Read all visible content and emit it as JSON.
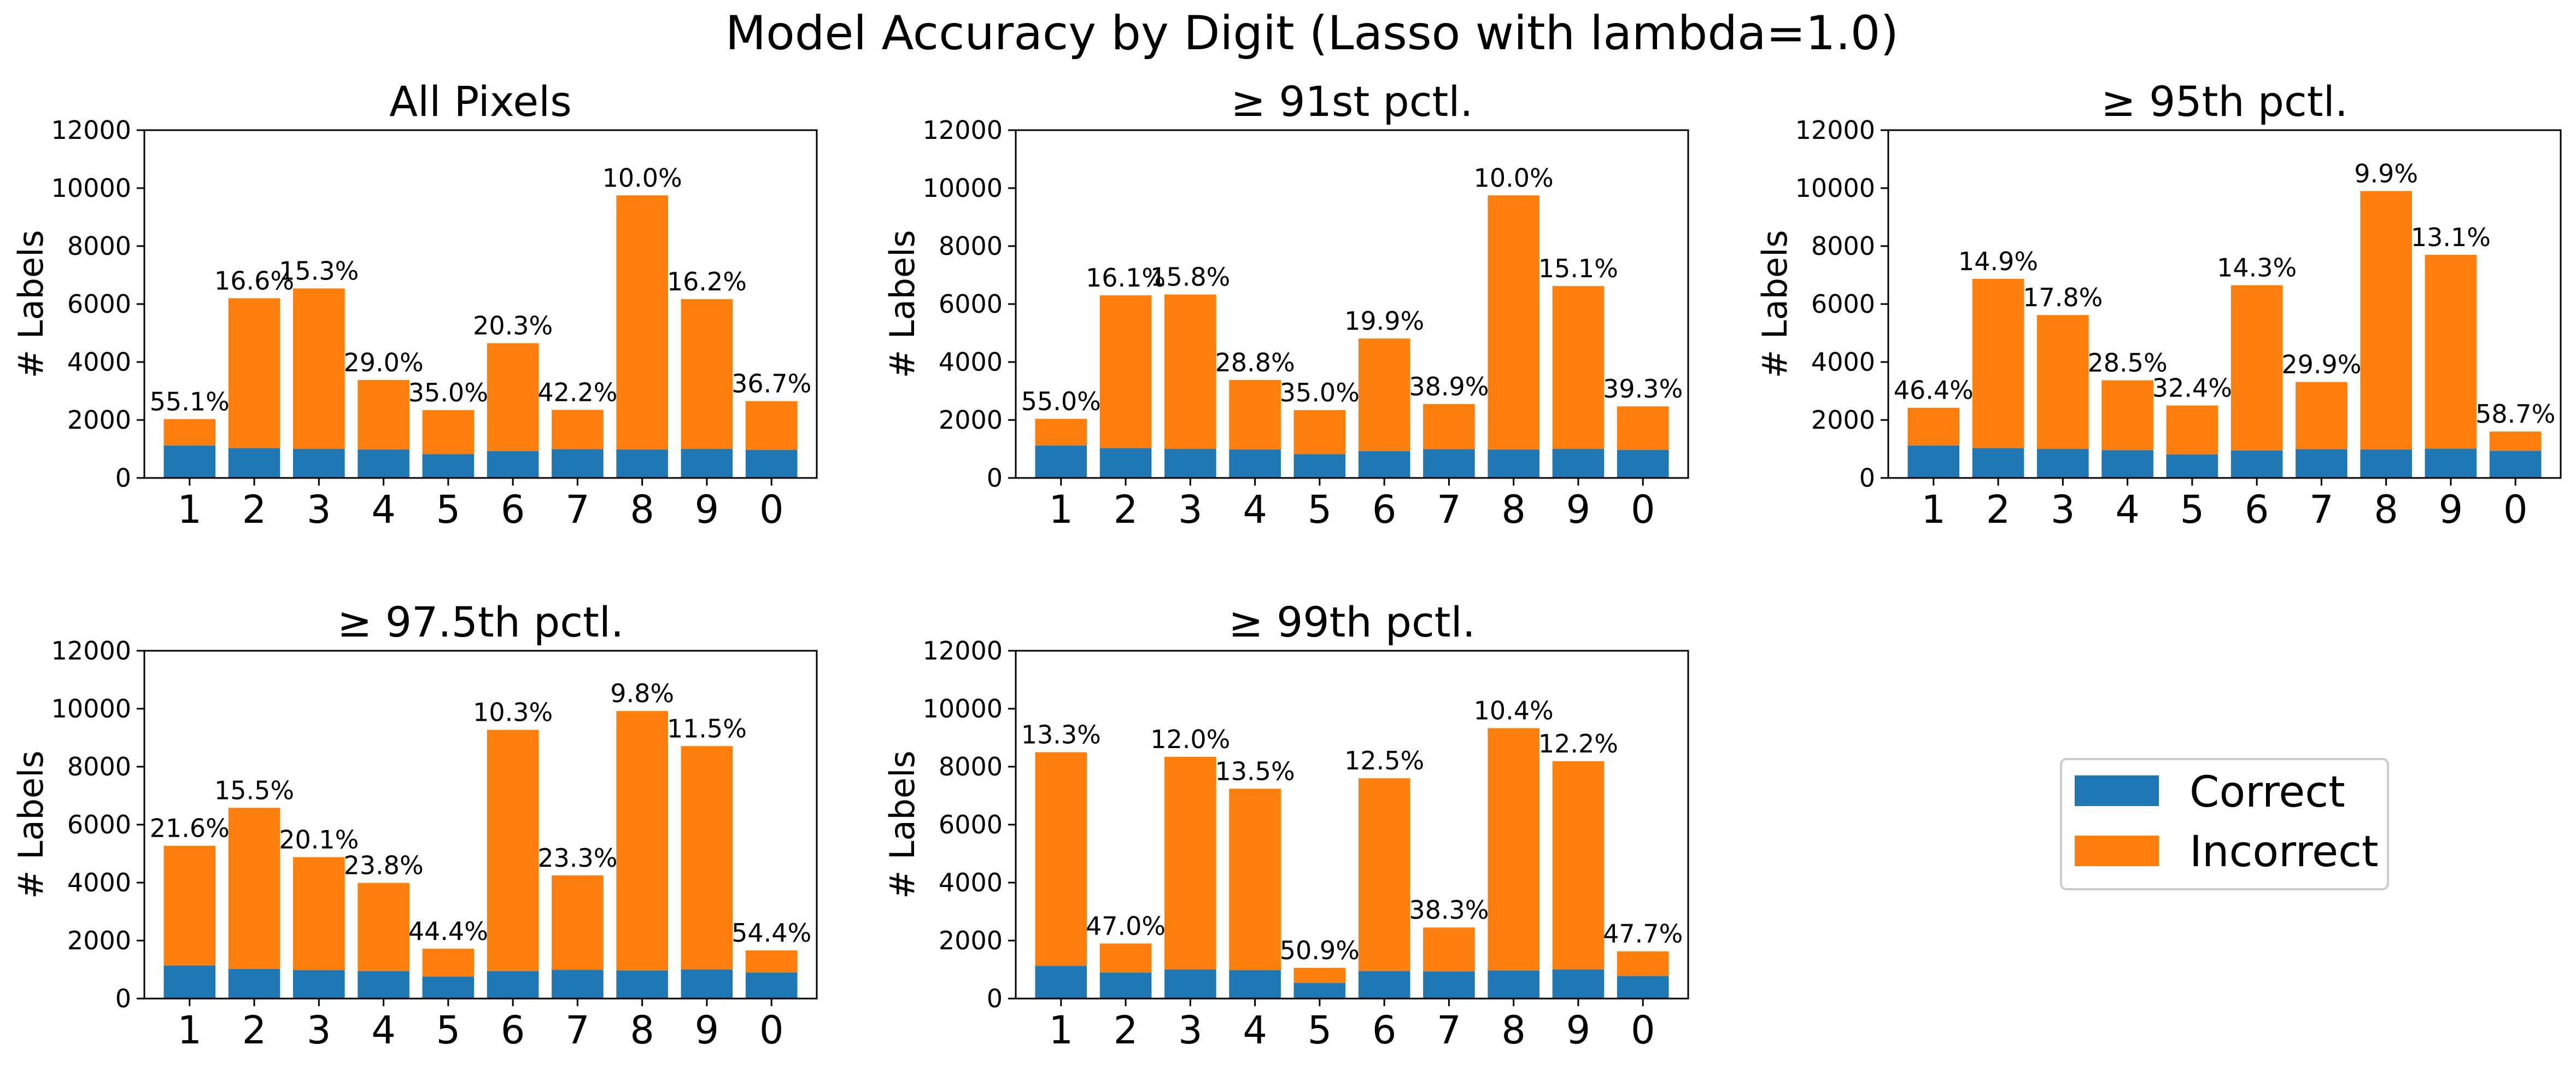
{
  "figure_title": "Model Accuracy by Digit (Lasso with lambda=1.0)",
  "legend": {
    "entries": [
      {
        "label": "Correct",
        "color": "#1f77b4"
      },
      {
        "label": "Incorrect",
        "color": "#ff7f0e"
      }
    ]
  },
  "colors": {
    "correct": "#1f77b4",
    "incorrect": "#ff7f0e"
  },
  "chart_data": [
    {
      "type": "bar",
      "stacked": true,
      "title": "All Pixels",
      "ylabel": "# Labels",
      "xlabel": "",
      "ylim": [
        0,
        12000
      ],
      "yticks": [
        "0",
        "2000",
        "4000",
        "6000",
        "8000",
        "10000",
        "12000"
      ],
      "categories": [
        "1",
        "2",
        "3",
        "4",
        "5",
        "6",
        "7",
        "8",
        "9",
        "0"
      ],
      "series": [
        {
          "name": "Correct",
          "values": [
            1120,
            1030,
            1000,
            980,
            820,
            930,
            990,
            980,
            1000,
            970
          ]
        },
        {
          "name": "Incorrect",
          "values": [
            910,
            5170,
            5540,
            2400,
            1520,
            3720,
            1360,
            8770,
            5170,
            1680
          ]
        }
      ],
      "labels": [
        "55.1%",
        "16.6%",
        "15.3%",
        "29.0%",
        "35.0%",
        "20.3%",
        "42.2%",
        "10.0%",
        "16.2%",
        "36.7%"
      ]
    },
    {
      "type": "bar",
      "stacked": true,
      "title": "≥ 91st pctl.",
      "ylabel": "# Labels",
      "xlabel": "",
      "ylim": [
        0,
        12000
      ],
      "yticks": [
        "0",
        "2000",
        "4000",
        "6000",
        "8000",
        "10000",
        "12000"
      ],
      "categories": [
        "1",
        "2",
        "3",
        "4",
        "5",
        "6",
        "7",
        "8",
        "9",
        "0"
      ],
      "series": [
        {
          "name": "Correct",
          "values": [
            1120,
            1030,
            1000,
            980,
            820,
            930,
            990,
            980,
            1000,
            970
          ]
        },
        {
          "name": "Incorrect",
          "values": [
            920,
            5270,
            5330,
            2400,
            1520,
            3880,
            1560,
            8770,
            5620,
            1500
          ]
        }
      ],
      "labels": [
        "55.0%",
        "16.1%",
        "15.8%",
        "28.8%",
        "35.0%",
        "19.9%",
        "38.9%",
        "10.0%",
        "15.1%",
        "39.3%"
      ]
    },
    {
      "type": "bar",
      "stacked": true,
      "title": "≥ 95th pctl.",
      "ylabel": "# Labels",
      "xlabel": "",
      "ylim": [
        0,
        12000
      ],
      "yticks": [
        "0",
        "2000",
        "4000",
        "6000",
        "8000",
        "10000",
        "12000"
      ],
      "categories": [
        "1",
        "2",
        "3",
        "4",
        "5",
        "6",
        "7",
        "8",
        "9",
        "0"
      ],
      "series": [
        {
          "name": "Correct",
          "values": [
            1120,
            1030,
            1000,
            960,
            810,
            950,
            990,
            980,
            1010,
            940
          ]
        },
        {
          "name": "Incorrect",
          "values": [
            1300,
            5840,
            4620,
            2410,
            1690,
            5700,
            2320,
            8920,
            6690,
            660
          ]
        }
      ],
      "labels": [
        "46.4%",
        "14.9%",
        "17.8%",
        "28.5%",
        "32.4%",
        "14.3%",
        "29.9%",
        "9.9%",
        "13.1%",
        "58.7%"
      ]
    },
    {
      "type": "bar",
      "stacked": true,
      "title": "≥ 97.5th pctl.",
      "ylabel": "# Labels",
      "xlabel": "",
      "ylim": [
        0,
        12000
      ],
      "yticks": [
        "0",
        "2000",
        "4000",
        "6000",
        "8000",
        "10000",
        "12000"
      ],
      "categories": [
        "1",
        "2",
        "3",
        "4",
        "5",
        "6",
        "7",
        "8",
        "9",
        "0"
      ],
      "series": [
        {
          "name": "Correct",
          "values": [
            1140,
            1020,
            980,
            950,
            760,
            950,
            990,
            970,
            1000,
            900
          ]
        },
        {
          "name": "Incorrect",
          "values": [
            4130,
            5560,
            3900,
            3040,
            960,
            8320,
            3260,
            8950,
            7710,
            760
          ]
        }
      ],
      "labels": [
        "21.6%",
        "15.5%",
        "20.1%",
        "23.8%",
        "44.4%",
        "10.3%",
        "23.3%",
        "9.8%",
        "11.5%",
        "54.4%"
      ]
    },
    {
      "type": "bar",
      "stacked": true,
      "title": "≥ 99th pctl.",
      "ylabel": "# Labels",
      "xlabel": "",
      "ylim": [
        0,
        12000
      ],
      "yticks": [
        "0",
        "2000",
        "4000",
        "6000",
        "8000",
        "10000",
        "12000"
      ],
      "categories": [
        "1",
        "2",
        "3",
        "4",
        "5",
        "6",
        "7",
        "8",
        "9",
        "0"
      ],
      "series": [
        {
          "name": "Correct",
          "values": [
            1130,
            900,
            1000,
            980,
            540,
            950,
            940,
            970,
            1000,
            780
          ]
        },
        {
          "name": "Incorrect",
          "values": [
            7370,
            1000,
            7340,
            6260,
            520,
            6650,
            1510,
            8360,
            7190,
            850
          ]
        }
      ],
      "labels": [
        "13.3%",
        "47.0%",
        "12.0%",
        "13.5%",
        "50.9%",
        "12.5%",
        "38.3%",
        "10.4%",
        "12.2%",
        "47.7%"
      ]
    }
  ]
}
